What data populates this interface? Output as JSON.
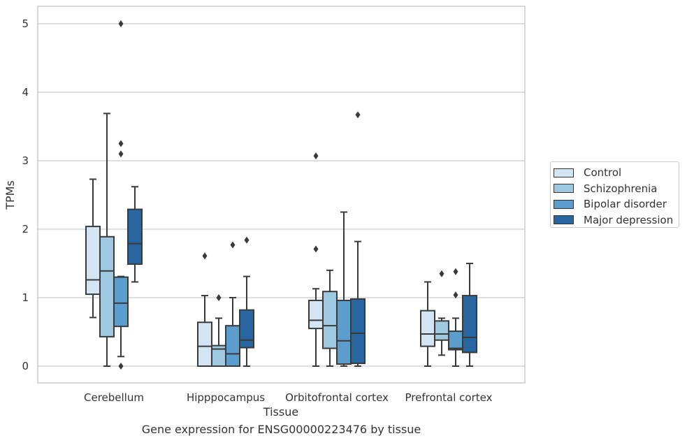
{
  "caption": "Gene expression for ENSG00000223476 by tissue",
  "chart_data": {
    "type": "box",
    "title": "",
    "xlabel": "Tissue",
    "ylabel": "TPMs",
    "ylim": [
      -0.25,
      5.25
    ],
    "yticks": [
      "0",
      "1",
      "2",
      "3",
      "4",
      "5"
    ],
    "grid": "horizontal",
    "legend_position": "right",
    "categories": [
      "Cerebellum",
      "Hipppocampus",
      "Orbitofrontal cortex",
      "Prefrontal cortex"
    ],
    "series": [
      {
        "name": "Control",
        "color": "#d3e4f3",
        "boxes": [
          {
            "whisker_low": 0.71,
            "q1": 1.05,
            "median": 1.26,
            "q3": 2.04,
            "whisker_high": 2.73,
            "outliers": []
          },
          {
            "whisker_low": 0.0,
            "q1": 0.0,
            "median": 0.29,
            "q3": 0.64,
            "whisker_high": 1.03,
            "outliers": [
              1.61
            ]
          },
          {
            "whisker_low": 0.0,
            "q1": 0.55,
            "median": 0.67,
            "q3": 0.96,
            "whisker_high": 1.13,
            "outliers": [
              1.71,
              3.07
            ]
          },
          {
            "whisker_low": 0.0,
            "q1": 0.29,
            "median": 0.47,
            "q3": 0.81,
            "whisker_high": 1.23,
            "outliers": []
          }
        ]
      },
      {
        "name": "Schizophrenia",
        "color": "#9fc8e1",
        "boxes": [
          {
            "whisker_low": 0.0,
            "q1": 0.43,
            "median": 1.39,
            "q3": 1.89,
            "whisker_high": 3.69,
            "outliers": []
          },
          {
            "whisker_low": 0.0,
            "q1": 0.0,
            "median": 0.25,
            "q3": 0.3,
            "whisker_high": 0.7,
            "outliers": [
              1.0
            ]
          },
          {
            "whisker_low": 0.0,
            "q1": 0.26,
            "median": 0.59,
            "q3": 1.09,
            "whisker_high": 1.4,
            "outliers": []
          },
          {
            "whisker_low": 0.16,
            "q1": 0.38,
            "median": 0.47,
            "q3": 0.66,
            "whisker_high": 0.7,
            "outliers": [
              1.35
            ]
          }
        ]
      },
      {
        "name": "Bipolar disorder",
        "color": "#5b9dcc",
        "boxes": [
          {
            "whisker_low": 0.14,
            "q1": 0.58,
            "median": 0.92,
            "q3": 1.3,
            "whisker_high": 1.31,
            "outliers": [
              3.1,
              3.25,
              5.0,
              0.0
            ]
          },
          {
            "whisker_low": 0.0,
            "q1": 0.0,
            "median": 0.18,
            "q3": 0.59,
            "whisker_high": 1.0,
            "outliers": [
              1.77
            ]
          },
          {
            "whisker_low": 0.0,
            "q1": 0.03,
            "median": 0.37,
            "q3": 0.96,
            "whisker_high": 2.25,
            "outliers": []
          },
          {
            "whisker_low": 0.0,
            "q1": 0.24,
            "median": 0.26,
            "q3": 0.51,
            "whisker_high": 0.7,
            "outliers": [
              1.04,
              1.38
            ]
          }
        ]
      },
      {
        "name": "Major depression",
        "color": "#2866a2",
        "boxes": [
          {
            "whisker_low": 1.23,
            "q1": 1.49,
            "median": 1.79,
            "q3": 2.29,
            "whisker_high": 2.62,
            "outliers": []
          },
          {
            "whisker_low": 0.0,
            "q1": 0.27,
            "median": 0.38,
            "q3": 0.82,
            "whisker_high": 1.31,
            "outliers": [
              1.84
            ]
          },
          {
            "whisker_low": 0.0,
            "q1": 0.04,
            "median": 0.48,
            "q3": 0.98,
            "whisker_high": 1.82,
            "outliers": [
              3.67
            ]
          },
          {
            "whisker_low": 0.0,
            "q1": 0.2,
            "median": 0.42,
            "q3": 1.03,
            "whisker_high": 1.5,
            "outliers": []
          }
        ]
      }
    ]
  }
}
